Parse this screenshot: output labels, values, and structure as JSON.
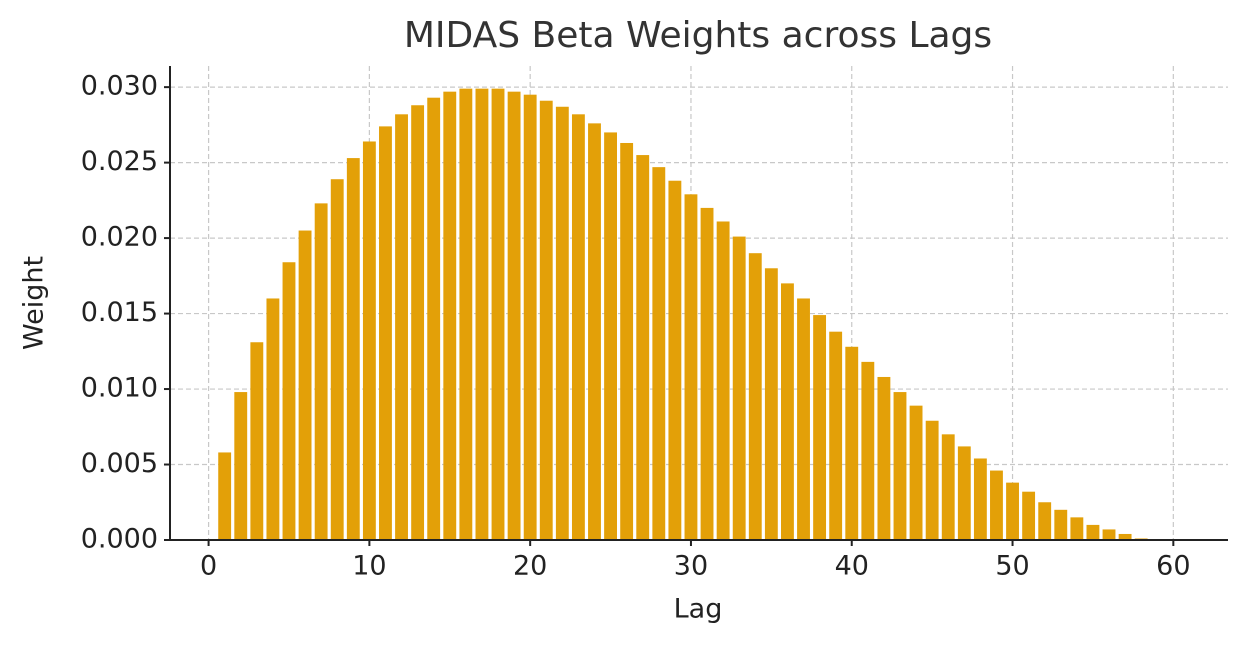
{
  "chart_data": {
    "type": "bar",
    "title": "MIDAS Beta Weights across Lags",
    "x_label": "Lag",
    "y_label": "Weight",
    "x": [
      1,
      2,
      3,
      4,
      5,
      6,
      7,
      8,
      9,
      10,
      11,
      12,
      13,
      14,
      15,
      16,
      17,
      18,
      19,
      20,
      21,
      22,
      23,
      24,
      25,
      26,
      27,
      28,
      29,
      30,
      31,
      32,
      33,
      34,
      35,
      36,
      37,
      38,
      39,
      40,
      41,
      42,
      43,
      44,
      45,
      46,
      47,
      48,
      49,
      50,
      51,
      52,
      53,
      54,
      55,
      56,
      57,
      58
    ],
    "values": [
      0.0058,
      0.0098,
      0.0131,
      0.016,
      0.0184,
      0.0205,
      0.0223,
      0.0239,
      0.0253,
      0.0264,
      0.0274,
      0.0282,
      0.0288,
      0.0293,
      0.0297,
      0.0299,
      0.0299,
      0.0299,
      0.0297,
      0.0295,
      0.0291,
      0.0287,
      0.0282,
      0.0276,
      0.027,
      0.0263,
      0.0255,
      0.0247,
      0.0238,
      0.0229,
      0.022,
      0.0211,
      0.0201,
      0.019,
      0.018,
      0.017,
      0.016,
      0.0149,
      0.0138,
      0.0128,
      0.0118,
      0.0108,
      0.0098,
      0.0089,
      0.0079,
      0.007,
      0.0062,
      0.0054,
      0.0046,
      0.0038,
      0.0032,
      0.0025,
      0.002,
      0.0015,
      0.001,
      0.0007,
      0.0004,
      0.0001
    ],
    "color": "#e3a008",
    "xlim": [
      -2.4,
      63.4
    ],
    "xticks": [
      0,
      10,
      20,
      30,
      40,
      50,
      60
    ],
    "ylim": [
      0,
      0.0314
    ],
    "yticks": [
      {
        "value": 0,
        "label": "0.000"
      },
      {
        "value": 0.005,
        "label": "0.005"
      },
      {
        "value": 0.01,
        "label": "0.010"
      },
      {
        "value": 0.015,
        "label": "0.015"
      },
      {
        "value": 0.02,
        "label": "0.020"
      },
      {
        "value": 0.025,
        "label": "0.025"
      },
      {
        "value": 0.03,
        "label": "0.030"
      }
    ],
    "grid": true
  }
}
